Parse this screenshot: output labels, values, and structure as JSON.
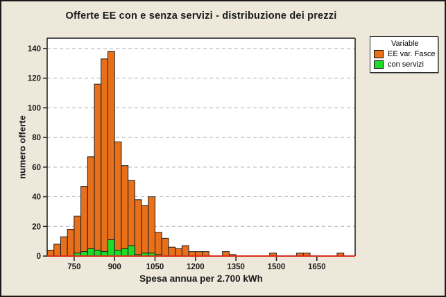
{
  "figure": {
    "background_color": "#EDE8DA",
    "border_color": "#1A1A1A"
  },
  "chart_data": {
    "type": "bar",
    "subtype": "histogram, two overlaid frequency series",
    "title": "Offerte EE con e senza servizi - distribuzione dei prezzi",
    "xlabel": "Spesa annua per 2.700 kWh",
    "ylabel": "numero offerte",
    "x_ticks": [
      750,
      900,
      1050,
      1200,
      1350,
      1500,
      1650
    ],
    "y_ticks": [
      0,
      20,
      40,
      60,
      80,
      100,
      120,
      140
    ],
    "xlim": [
      650,
      1792
    ],
    "ylim": [
      0,
      147
    ],
    "bin_width": 25,
    "grid": "horizontal dashed gridlines only",
    "plot_background": "#FFFFFF",
    "gridline_color": "#ACACAC",
    "baseline_color": "#DE2B1E",
    "text_color": "#1A1A1A",
    "legend": {
      "title": "Variable",
      "position": "outside top-right"
    },
    "series": [
      {
        "name": "EE var. Fasce",
        "color": "#E8701A",
        "bins_start_count": [
          [
            650,
            4
          ],
          [
            675,
            8
          ],
          [
            700,
            13
          ],
          [
            725,
            18
          ],
          [
            750,
            27
          ],
          [
            775,
            47
          ],
          [
            800,
            67
          ],
          [
            825,
            116
          ],
          [
            850,
            133
          ],
          [
            875,
            138
          ],
          [
            900,
            77
          ],
          [
            925,
            61
          ],
          [
            950,
            51
          ],
          [
            975,
            38
          ],
          [
            1000,
            34
          ],
          [
            1025,
            40
          ],
          [
            1050,
            16
          ],
          [
            1075,
            12
          ],
          [
            1100,
            6
          ],
          [
            1125,
            5
          ],
          [
            1150,
            7
          ],
          [
            1175,
            3
          ],
          [
            1200,
            3
          ],
          [
            1225,
            3
          ],
          [
            1300,
            3
          ],
          [
            1325,
            1
          ],
          [
            1475,
            2
          ],
          [
            1575,
            2
          ],
          [
            1600,
            2
          ],
          [
            1725,
            2
          ]
        ]
      },
      {
        "name": "con servizi",
        "color": "#1EDB2A",
        "bins_start_count": [
          [
            750,
            2
          ],
          [
            775,
            3
          ],
          [
            800,
            5
          ],
          [
            825,
            4
          ],
          [
            850,
            3
          ],
          [
            875,
            11
          ],
          [
            900,
            4
          ],
          [
            925,
            5
          ],
          [
            950,
            7
          ],
          [
            975,
            1
          ],
          [
            1000,
            2
          ],
          [
            1025,
            2
          ],
          [
            1050,
            1
          ]
        ]
      }
    ]
  }
}
